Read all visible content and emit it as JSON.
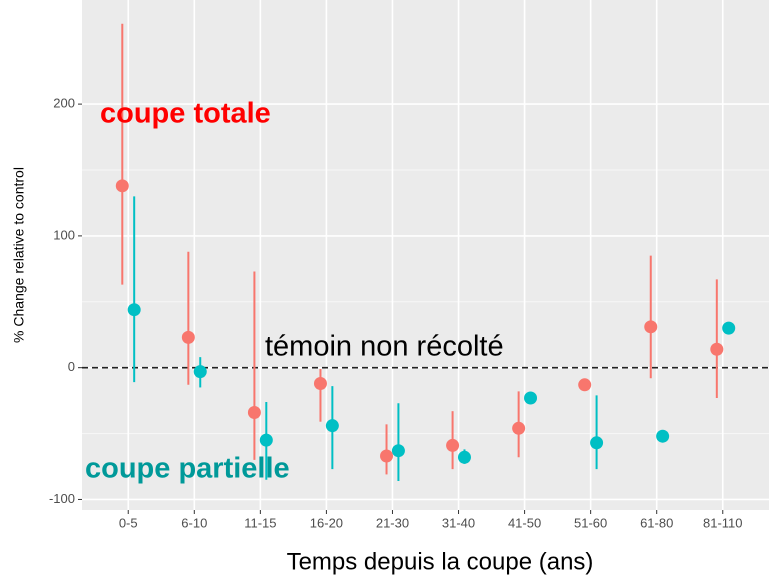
{
  "chart_data": {
    "type": "errorpoint",
    "x_label": "Temps depuis la coupe (ans)",
    "y_label": "% Change relative to control",
    "categories": [
      "0-5",
      "6-10",
      "11-15",
      "16-20",
      "21-30",
      "31-40",
      "41-50",
      "51-60",
      "61-80",
      "81-110"
    ],
    "series": [
      {
        "name": "coupe totale",
        "color": "#f8766d",
        "label_color": "#ff0000",
        "values": [
          138,
          23,
          -34,
          -12,
          -67,
          -59,
          -46,
          -13,
          31,
          14
        ],
        "low": [
          63,
          -13,
          -70,
          -41,
          -81,
          -77,
          -68,
          null,
          -8,
          -23
        ],
        "high": [
          261,
          88,
          73,
          -1,
          -43,
          -33,
          -18,
          null,
          85,
          67
        ]
      },
      {
        "name": "coupe partielle",
        "color": "#00bfc4",
        "label_color": "#009999",
        "values": [
          44,
          -3,
          -55,
          -44,
          -63,
          -68,
          -23,
          -57,
          -52,
          30
        ],
        "low": [
          -11,
          -15,
          -85,
          -77,
          -86,
          -73,
          null,
          -77,
          null,
          null
        ],
        "high": [
          130,
          8,
          -26,
          -14,
          -27,
          -62,
          null,
          -21,
          null,
          null
        ]
      }
    ],
    "reference_line": {
      "value": 0,
      "label": "témoin non récolté"
    },
    "ylim": [
      -108,
      279
    ],
    "yticks": [
      -100,
      0,
      100,
      200
    ],
    "grid": true
  }
}
